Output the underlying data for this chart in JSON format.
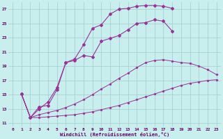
{
  "xlabel": "Windchill (Refroidissement éolien,°C)",
  "bg_color": "#c8eeee",
  "grid_color": "#a0cccc",
  "line_color": "#993399",
  "xlim": [
    -0.5,
    23.5
  ],
  "ylim": [
    10.5,
    28.0
  ],
  "xticks": [
    0,
    1,
    2,
    3,
    4,
    5,
    6,
    7,
    8,
    9,
    10,
    11,
    12,
    13,
    14,
    15,
    16,
    17,
    18,
    19,
    20,
    21,
    22,
    23
  ],
  "yticks": [
    11,
    13,
    15,
    17,
    19,
    21,
    23,
    25,
    27
  ],
  "curve1_x": [
    1,
    2,
    3,
    4,
    5,
    6,
    7,
    8,
    9,
    10,
    11,
    12,
    13,
    14,
    15,
    16,
    17,
    18,
    19,
    20,
    21,
    22,
    23
  ],
  "curve1_y": [
    15.1,
    11.8,
    11.8,
    11.9,
    12.0,
    12.1,
    12.2,
    12.4,
    12.6,
    12.9,
    13.2,
    13.5,
    13.9,
    14.3,
    14.7,
    15.1,
    15.5,
    15.9,
    16.3,
    16.6,
    16.8,
    17.0,
    17.1
  ],
  "curve2_x": [
    1,
    2,
    3,
    4,
    5,
    6,
    7,
    8,
    9,
    10,
    11,
    12,
    13,
    14,
    15,
    16,
    17,
    18,
    19,
    20,
    21,
    22,
    23
  ],
  "curve2_y": [
    15.1,
    11.8,
    12.2,
    12.5,
    12.8,
    13.2,
    13.7,
    14.3,
    15.0,
    15.8,
    16.5,
    17.3,
    18.0,
    18.8,
    19.5,
    19.8,
    19.9,
    19.7,
    19.5,
    19.4,
    19.0,
    18.5,
    17.8
  ],
  "curve3_x": [
    1,
    2,
    3,
    4,
    5,
    6,
    7,
    8,
    9,
    10,
    11,
    12,
    13,
    14,
    15,
    16,
    17,
    18
  ],
  "curve3_y": [
    15.1,
    11.8,
    13.3,
    13.5,
    15.7,
    19.5,
    19.8,
    20.5,
    20.3,
    22.5,
    22.9,
    23.3,
    24.1,
    25.0,
    25.1,
    25.5,
    25.3,
    23.9
  ],
  "curve4_x": [
    1,
    2,
    3,
    4,
    5,
    6,
    7,
    8,
    9,
    10,
    11,
    12,
    13,
    14,
    15,
    16,
    17,
    18
  ],
  "curve4_y": [
    15.1,
    11.8,
    13.0,
    14.0,
    16.0,
    19.5,
    20.0,
    22.0,
    24.3,
    24.8,
    26.3,
    27.0,
    27.1,
    27.4,
    27.5,
    27.5,
    27.4,
    27.1
  ]
}
